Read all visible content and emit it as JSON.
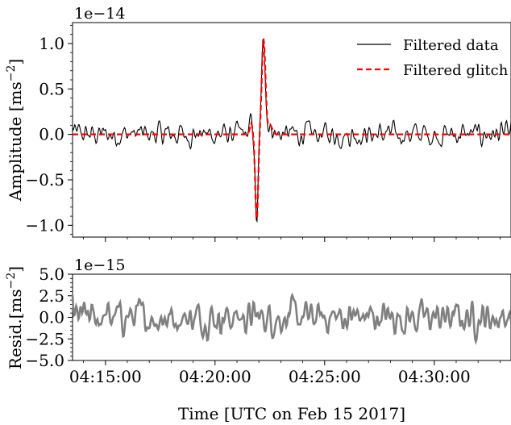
{
  "chart_data": [
    {
      "type": "line",
      "panel": "top",
      "offset_text": "1e−14",
      "ylabel": "Amplitude [ms",
      "ylabel_unit_exp": "−2",
      "ylabel_close": "]",
      "ylim": [
        -1.13,
        1.23
      ],
      "yticks": [
        -1.0,
        -0.5,
        0.0,
        0.5,
        1.0
      ],
      "ytick_labels": [
        "−1.0",
        "−0.5",
        "0.0",
        "0.5",
        "1.0"
      ],
      "legend_position": "top-right",
      "legend": [
        {
          "label": "Filtered data",
          "color": "#000000",
          "style": "solid"
        },
        {
          "label": "Filtered glitch",
          "color": "#ff0000",
          "style": "dashed"
        }
      ],
      "glitch": {
        "time": "04:22:05",
        "pre_bump": 0.12,
        "negative_peak": -0.95,
        "positive_peak": 1.05,
        "decay": 0.1
      },
      "data_peaks": {
        "min": -0.98,
        "max": 1.12
      },
      "noise_amplitude": 0.08
    },
    {
      "type": "line",
      "panel": "bottom",
      "offset_text": "1e−15",
      "ylabel": "Resid.[ms",
      "ylabel_unit_exp": "−2",
      "ylabel_close": "]",
      "ylim": [
        -5.0,
        5.0
      ],
      "yticks": [
        -5.0,
        -2.5,
        0.0,
        2.5,
        5.0
      ],
      "ytick_labels": [
        "−5.0",
        "−2.5",
        "0.0",
        "2.5",
        "5.0"
      ],
      "series": [
        {
          "color": "#808080",
          "amplitude": 1.0
        }
      ],
      "xlabel": "Time [UTC on Feb 15 2017]",
      "x_start": "04:13:30",
      "x_end": "04:33:30",
      "xticks": [
        "04:15:00",
        "04:20:00",
        "04:25:00",
        "04:30:00"
      ]
    }
  ]
}
